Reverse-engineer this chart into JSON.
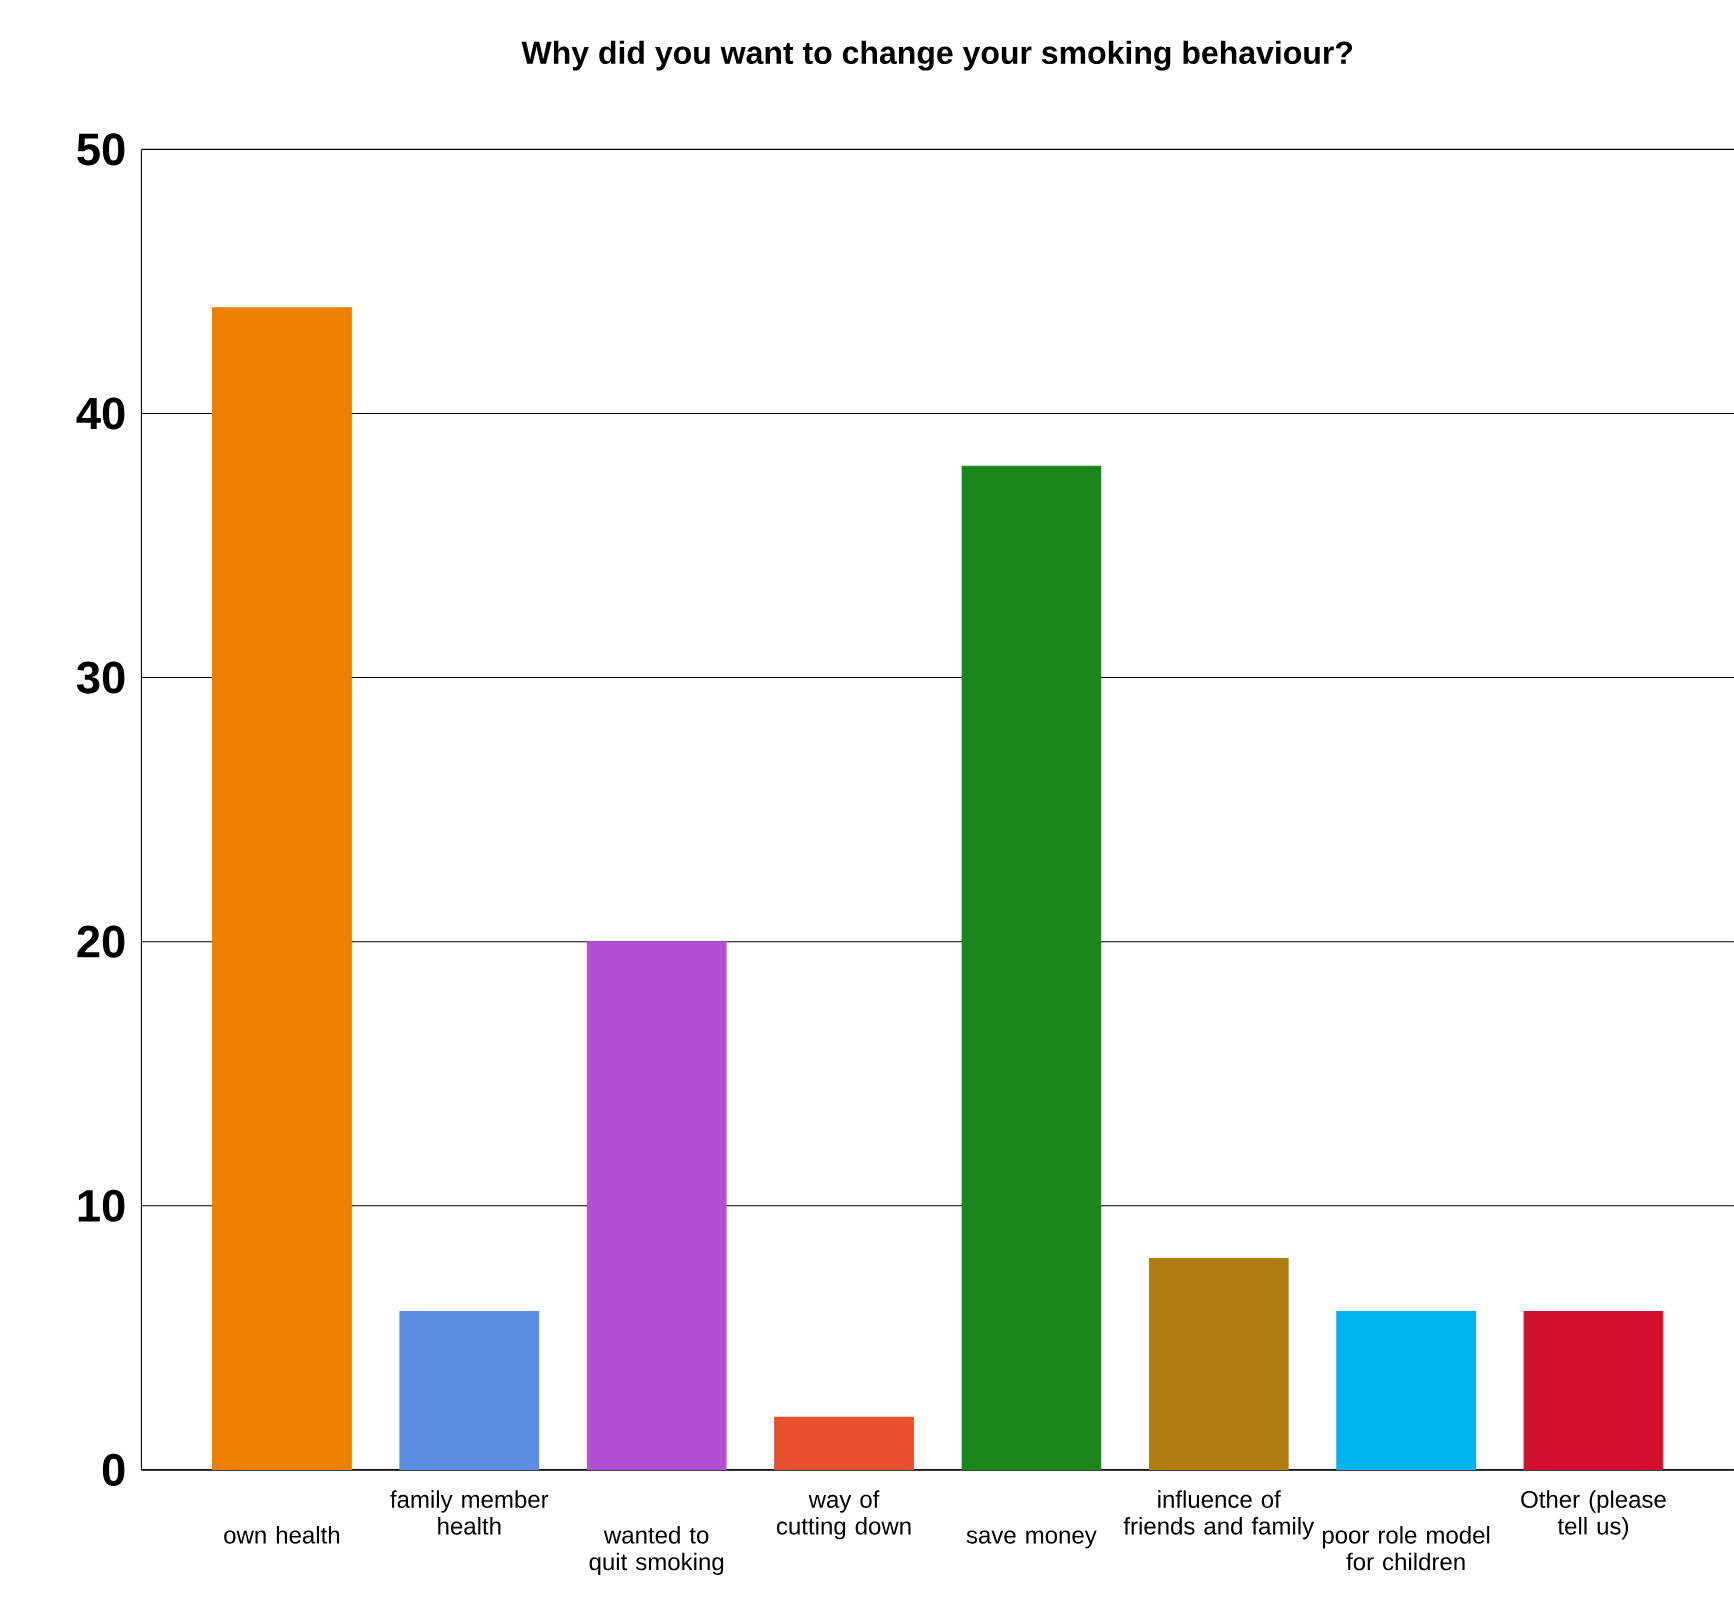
{
  "chart_data": {
    "type": "bar",
    "title": "Why did you want to change your smoking behaviour?",
    "categories": [
      "own health",
      "family member health",
      "wanted to quit smoking",
      "way of cutting down",
      "save money",
      "influence of friends and family",
      "poor role model for children",
      "Other (please tell us)"
    ],
    "values": [
      44,
      6,
      20,
      2,
      38,
      8,
      6,
      6
    ],
    "colors": [
      "#ee8200",
      "#5a8de0",
      "#b24fd2",
      "#e8502e",
      "#1b871b",
      "#b07e10",
      "#00b2ee",
      "#d3102e"
    ],
    "ylim": [
      0,
      50
    ],
    "yticks": [
      0,
      10,
      20,
      30,
      40,
      50
    ],
    "grid": "y"
  }
}
